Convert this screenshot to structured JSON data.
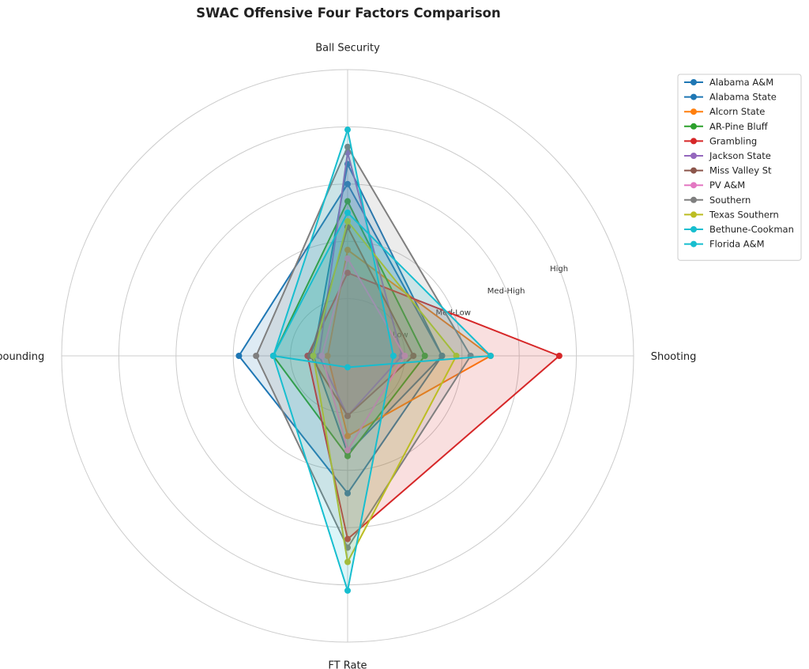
{
  "chart_data": {
    "type": "radar",
    "title": "SWAC Offensive Four Factors Comparison",
    "axes": [
      "Shooting",
      "Ball Security",
      "Off Rebounding",
      "FT Rate"
    ],
    "ring_labels": [
      "Low",
      "Med-Low",
      "Med-High",
      "High"
    ],
    "rlim": [
      0,
      1
    ],
    "grid": true,
    "legend_position": "top-right",
    "series": [
      {
        "name": "Alabama A&M",
        "color": "#1f77b4",
        "values": [
          0.33,
          0.6,
          0.38,
          0.48
        ]
      },
      {
        "name": "Alabama State",
        "color": "#1f77b4",
        "values": [
          0.33,
          0.67,
          0.12,
          0.34
        ]
      },
      {
        "name": "Alcorn State",
        "color": "#ff7f0e",
        "values": [
          0.5,
          0.37,
          0.07,
          0.28
        ]
      },
      {
        "name": "AR-Pine Bluff",
        "color": "#2ca02c",
        "values": [
          0.27,
          0.54,
          0.26,
          0.35
        ]
      },
      {
        "name": "Grambling",
        "color": "#d62728",
        "values": [
          0.74,
          0.29,
          0.14,
          0.64
        ]
      },
      {
        "name": "Jackson State",
        "color": "#9467bd",
        "values": [
          0.19,
          0.71,
          0.1,
          0.21
        ]
      },
      {
        "name": "Miss Valley St",
        "color": "#8c564b",
        "values": [
          0.23,
          0.45,
          0.13,
          0.21
        ]
      },
      {
        "name": "PV A&M",
        "color": "#e377c2",
        "values": [
          0.2,
          0.34,
          0.09,
          0.33
        ]
      },
      {
        "name": "Southern",
        "color": "#7f7f7f",
        "values": [
          0.43,
          0.73,
          0.32,
          0.67
        ]
      },
      {
        "name": "Texas Southern",
        "color": "#bcbd22",
        "values": [
          0.38,
          0.47,
          0.12,
          0.72
        ]
      },
      {
        "name": "Bethune-Cookman",
        "color": "#17becf",
        "values": [
          0.5,
          0.5,
          0.26,
          0.04
        ]
      },
      {
        "name": "Florida A&M",
        "color": "#17becf",
        "values": [
          0.16,
          0.79,
          0.26,
          0.82
        ]
      }
    ]
  }
}
